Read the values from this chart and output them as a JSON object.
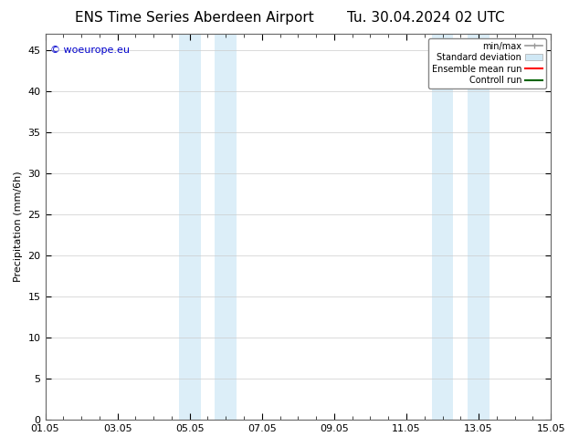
{
  "title_left": "ENS Time Series Aberdeen Airport",
  "title_right": "Tu. 30.04.2024 02 UTC",
  "ylabel": "Precipitation (mm/6h)",
  "watermark": "© woeurope.eu",
  "watermark_color": "#0000cc",
  "xtick_labels": [
    "01.05",
    "03.05",
    "05.05",
    "07.05",
    "09.05",
    "11.05",
    "13.05",
    "15.05"
  ],
  "xtick_positions": [
    0,
    2,
    4,
    6,
    8,
    10,
    12,
    14
  ],
  "ylim": [
    0,
    47
  ],
  "ytick_positions": [
    0,
    5,
    10,
    15,
    20,
    25,
    30,
    35,
    40,
    45
  ],
  "shaded_regions": [
    {
      "x_start": 3.7,
      "x_end": 4.3,
      "color": "#dceef8"
    },
    {
      "x_start": 4.7,
      "x_end": 5.3,
      "color": "#dceef8"
    },
    {
      "x_start": 10.7,
      "x_end": 11.3,
      "color": "#dceef8"
    },
    {
      "x_start": 11.7,
      "x_end": 12.3,
      "color": "#dceef8"
    }
  ],
  "legend_items": [
    {
      "label": "min/max",
      "color": "#aaaaaa",
      "style": "errorbar"
    },
    {
      "label": "Standard deviation",
      "color": "#d0e8f5",
      "style": "rect"
    },
    {
      "label": "Ensemble mean run",
      "color": "#ff0000",
      "style": "line"
    },
    {
      "label": "Controll run",
      "color": "#006400",
      "style": "line"
    }
  ],
  "bg_color": "#ffffff",
  "plot_bg_color": "#ffffff",
  "grid_color": "#cccccc",
  "title_fontsize": 11,
  "axis_fontsize": 8,
  "tick_fontsize": 8,
  "watermark_fontsize": 8
}
